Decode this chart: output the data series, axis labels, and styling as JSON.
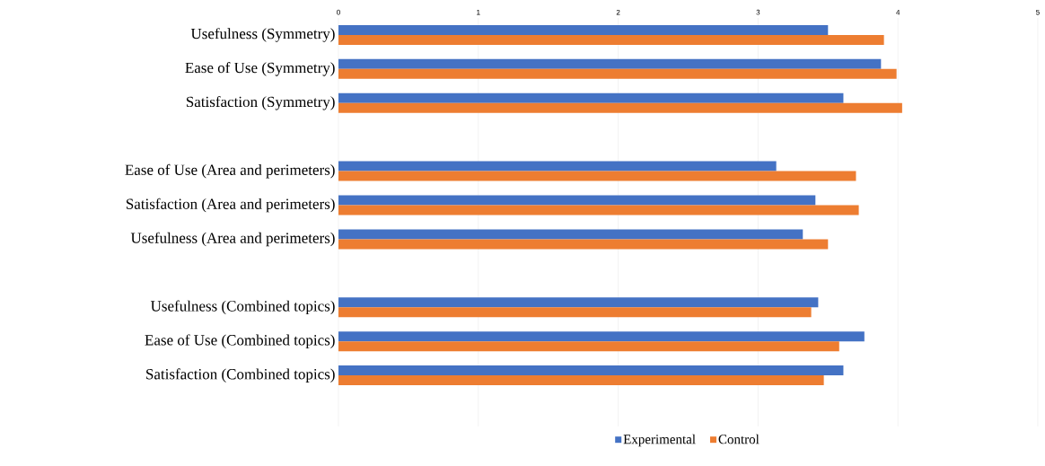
{
  "chart_data": {
    "type": "bar",
    "orientation": "horizontal",
    "categories": [
      "Usefulness (Symmetry)",
      "Ease of Use (Symmetry)",
      "Satisfaction (Symmetry)",
      null,
      "Ease of Use (Area and perimeters)",
      "Satisfaction (Area and perimeters)",
      "Usefulness (Area and perimeters)",
      null,
      "Usefulness (Combined topics)",
      "Ease of Use (Combined topics)",
      "Satisfaction (Combined topics)",
      null
    ],
    "series": [
      {
        "name": "Experimental",
        "color": "#4472c4",
        "values": [
          3.5,
          3.88,
          3.61,
          null,
          3.13,
          3.41,
          3.32,
          null,
          3.43,
          3.76,
          3.61,
          null
        ]
      },
      {
        "name": "Control",
        "color": "#ed7d31",
        "values": [
          3.9,
          3.99,
          4.03,
          null,
          3.7,
          3.72,
          3.5,
          null,
          3.38,
          3.58,
          3.47,
          null
        ]
      }
    ],
    "xlim": [
      0,
      5
    ],
    "xticks": [
      0,
      1,
      2,
      3,
      4,
      5
    ],
    "grid": "x",
    "legend": "bottom"
  }
}
